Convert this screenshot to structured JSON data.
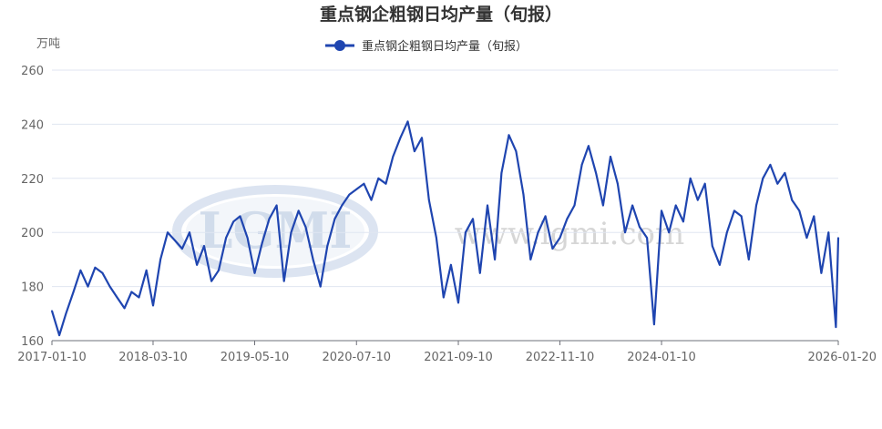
{
  "chart_data": {
    "type": "line",
    "title": "重点钢企粗钢日均产量（旬报）",
    "ylabel": "万吨",
    "ylim": [
      160,
      260
    ],
    "yticks": [
      "160",
      "180",
      "200",
      "220",
      "240",
      "260"
    ],
    "xticks": [
      "2017-01-10",
      "2018-03-10",
      "2019-05-10",
      "2020-07-10",
      "2021-09-10",
      "2022-11-10",
      "2024-01-10",
      "2026-01-20"
    ],
    "grid": "horizontal",
    "legend_position": "top-center",
    "series": [
      {
        "name": "重点钢企粗钢日均产量（旬报）",
        "color": "#1f45b0",
        "x": [
          "2017-01-10",
          "2017-02-10",
          "2017-03-10",
          "2017-04-10",
          "2017-05-10",
          "2017-06-10",
          "2017-07-10",
          "2017-08-10",
          "2017-09-10",
          "2017-10-10",
          "2017-11-10",
          "2017-12-10",
          "2018-01-10",
          "2018-02-10",
          "2018-03-10",
          "2018-04-10",
          "2018-05-10",
          "2018-06-10",
          "2018-07-10",
          "2018-08-10",
          "2018-09-10",
          "2018-10-10",
          "2018-11-10",
          "2018-12-10",
          "2019-01-10",
          "2019-02-10",
          "2019-03-10",
          "2019-04-10",
          "2019-05-10",
          "2019-06-10",
          "2019-07-10",
          "2019-08-10",
          "2019-09-10",
          "2019-10-10",
          "2019-11-10",
          "2019-12-10",
          "2020-01-10",
          "2020-02-10",
          "2020-03-10",
          "2020-04-10",
          "2020-05-10",
          "2020-06-10",
          "2020-07-10",
          "2020-08-10",
          "2020-09-10",
          "2020-10-10",
          "2020-11-10",
          "2020-12-10",
          "2021-01-10",
          "2021-02-10",
          "2021-03-10",
          "2021-04-10",
          "2021-05-10",
          "2021-06-10",
          "2021-07-10",
          "2021-08-10",
          "2021-09-10",
          "2021-10-10",
          "2021-11-10",
          "2021-12-10",
          "2022-01-10",
          "2022-02-10",
          "2022-03-10",
          "2022-04-10",
          "2022-05-10",
          "2022-06-10",
          "2022-07-10",
          "2022-08-10",
          "2022-09-10",
          "2022-10-10",
          "2022-11-10",
          "2022-12-10",
          "2023-01-10",
          "2023-02-10",
          "2023-03-10",
          "2023-04-10",
          "2023-05-10",
          "2023-06-10",
          "2023-07-10",
          "2023-08-10",
          "2023-09-10",
          "2023-10-10",
          "2023-11-10",
          "2023-12-10",
          "2024-01-10",
          "2024-02-10",
          "2024-03-10",
          "2024-04-10",
          "2024-05-10",
          "2024-06-10",
          "2024-07-10",
          "2024-08-10",
          "2024-09-10",
          "2024-10-10",
          "2024-11-10",
          "2024-12-10",
          "2025-01-10",
          "2025-02-10",
          "2025-03-10",
          "2025-04-10",
          "2025-05-10",
          "2025-06-10",
          "2025-07-10",
          "2025-08-10",
          "2025-09-10",
          "2025-10-10",
          "2025-11-10",
          "2025-12-10",
          "2026-01-10",
          "2026-01-20"
        ],
        "values": [
          171,
          162,
          170,
          178,
          186,
          180,
          187,
          185,
          180,
          176,
          172,
          178,
          176,
          186,
          173,
          190,
          200,
          197,
          194,
          200,
          188,
          195,
          182,
          186,
          198,
          204,
          206,
          198,
          185,
          196,
          205,
          210,
          182,
          200,
          208,
          202,
          190,
          180,
          195,
          205,
          210,
          214,
          216,
          218,
          212,
          220,
          218,
          228,
          235,
          241,
          230,
          235,
          212,
          198,
          176,
          188,
          174,
          200,
          205,
          185,
          210,
          190,
          222,
          236,
          230,
          214,
          190,
          200,
          206,
          194,
          198,
          205,
          210,
          225,
          232,
          222,
          210,
          228,
          218,
          200,
          210,
          202,
          198,
          166,
          208,
          200,
          210,
          204,
          220,
          212,
          218,
          195,
          188,
          200,
          208,
          206,
          190,
          210,
          220,
          225,
          218,
          222,
          212,
          208,
          198,
          206,
          185,
          200,
          165,
          198
        ]
      }
    ]
  },
  "watermark": {
    "logo": "LGMI",
    "url": "www.lgmi.com"
  }
}
